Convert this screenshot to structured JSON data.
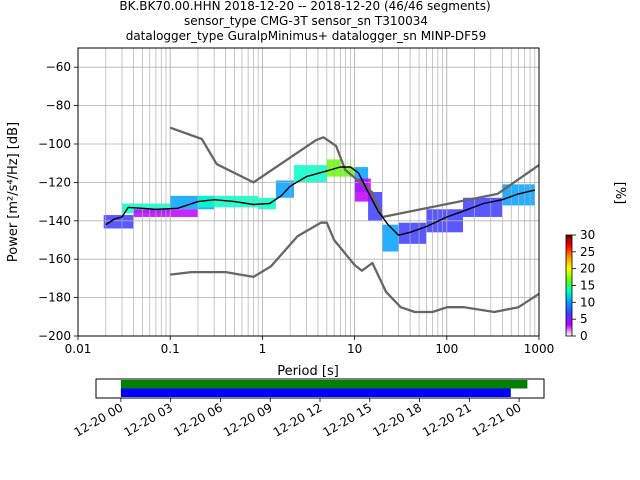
{
  "title": {
    "line1": "BK.BK70.00.HHN   2018-12-20 -- 2018-12-20  (46/46 segments)",
    "line2": "sensor_type CMG-3T sensor_sn T310034",
    "line3": "datalogger_type GuralpMinimus+ datalogger_sn MINP-DF59"
  },
  "chart_data": [
    {
      "type": "heatmap",
      "xlabel": "Period [s]",
      "ylabel": "Power [m²/s⁴/Hz] [dB]",
      "xscale": "log",
      "xlim": [
        0.01,
        1000
      ],
      "ylim": [
        -200,
        -50
      ],
      "grid": true,
      "xticks": [
        {
          "v": 0.01,
          "label": "0.01"
        },
        {
          "v": 0.1,
          "label": "0.1"
        },
        {
          "v": 1,
          "label": "1"
        },
        {
          "v": 10,
          "label": "10"
        },
        {
          "v": 100,
          "label": "100"
        },
        {
          "v": 1000,
          "label": "1000"
        }
      ],
      "yticks": [
        {
          "v": -60,
          "label": "−60"
        },
        {
          "v": -80,
          "label": "−80"
        },
        {
          "v": -100,
          "label": "−100"
        },
        {
          "v": -120,
          "label": "−120"
        },
        {
          "v": -140,
          "label": "−140"
        },
        {
          "v": -160,
          "label": "−160"
        },
        {
          "v": -180,
          "label": "−180"
        },
        {
          "v": -200,
          "label": "−200"
        }
      ],
      "colorbar": {
        "label": "[%]",
        "range": [
          0,
          30
        ],
        "ticks": [
          {
            "v": 0,
            "label": "0"
          },
          {
            "v": 5,
            "label": "5"
          },
          {
            "v": 10,
            "label": "10"
          },
          {
            "v": 15,
            "label": "15"
          },
          {
            "v": 20,
            "label": "20"
          },
          {
            "v": 25,
            "label": "25"
          },
          {
            "v": 30,
            "label": "30"
          }
        ],
        "colors": [
          "#ffffff",
          "#bf00ff",
          "#3c3cff",
          "#00a0ff",
          "#00ffc8",
          "#64ff00",
          "#ffff00",
          "#ff9600",
          "#ff0000",
          "#700000"
        ]
      },
      "noise_models": {
        "color": "#666666",
        "high": [
          [
            0.1,
            -91.5
          ],
          [
            0.22,
            -97.4
          ],
          [
            0.32,
            -110.5
          ],
          [
            0.8,
            -120.0
          ],
          [
            3.8,
            -98.0
          ],
          [
            4.6,
            -96.5
          ],
          [
            6.3,
            -101.0
          ],
          [
            7.9,
            -113.5
          ],
          [
            15.4,
            -125.0
          ],
          [
            20,
            -138.0
          ],
          [
            354.8,
            -126.0
          ],
          [
            1000,
            -111.0
          ]
        ],
        "low": [
          [
            0.1,
            -168.0
          ],
          [
            0.17,
            -166.7
          ],
          [
            0.4,
            -166.7
          ],
          [
            0.8,
            -169.2
          ],
          [
            1.24,
            -163.7
          ],
          [
            2.4,
            -148.0
          ],
          [
            4.3,
            -141.0
          ],
          [
            5.0,
            -141.0
          ],
          [
            6.0,
            -150.0
          ],
          [
            10.0,
            -163.0
          ],
          [
            12.0,
            -166.0
          ],
          [
            15.6,
            -162.0
          ],
          [
            21.9,
            -177.0
          ],
          [
            31.6,
            -185.0
          ],
          [
            45,
            -187.5
          ],
          [
            70,
            -187.5
          ],
          [
            101,
            -185.0
          ],
          [
            154,
            -185.0
          ],
          [
            328,
            -187.5
          ],
          [
            600,
            -185.0
          ],
          [
            1000,
            -178.0
          ]
        ]
      },
      "mode_curve": {
        "color": "#000000",
        "points": [
          [
            0.02,
            -142
          ],
          [
            0.025,
            -139
          ],
          [
            0.03,
            -138
          ],
          [
            0.035,
            -133
          ],
          [
            0.05,
            -133.5
          ],
          [
            0.07,
            -134
          ],
          [
            0.12,
            -133.5
          ],
          [
            0.2,
            -130
          ],
          [
            0.3,
            -129
          ],
          [
            0.5,
            -130
          ],
          [
            0.8,
            -131.5
          ],
          [
            1.2,
            -131
          ],
          [
            1.6,
            -127
          ],
          [
            2,
            -122
          ],
          [
            3,
            -117
          ],
          [
            5,
            -114
          ],
          [
            7,
            -112
          ],
          [
            9,
            -112
          ],
          [
            11,
            -115
          ],
          [
            14,
            -125
          ],
          [
            18,
            -135
          ],
          [
            23,
            -142
          ],
          [
            30,
            -147.5
          ],
          [
            40,
            -146
          ],
          [
            60,
            -143
          ],
          [
            100,
            -138
          ],
          [
            150,
            -135
          ],
          [
            250,
            -131
          ],
          [
            400,
            -129
          ],
          [
            600,
            -126
          ],
          [
            900,
            -124
          ]
        ]
      },
      "density": {
        "cells": [
          {
            "x": [
              0.019,
              0.04
            ],
            "y": [
              -144,
              -137
            ],
            "pct": 8
          },
          {
            "x": [
              0.03,
              0.1
            ],
            "y": [
              -136,
              -131
            ],
            "pct": 12
          },
          {
            "x": [
              0.04,
              0.2
            ],
            "y": [
              -138,
              -134
            ],
            "pct": 4
          },
          {
            "x": [
              0.1,
              0.3
            ],
            "y": [
              -134,
              -127
            ],
            "pct": 10
          },
          {
            "x": [
              0.2,
              0.9
            ],
            "y": [
              -133,
              -127
            ],
            "pct": 14
          },
          {
            "x": [
              0.2,
              1.0
            ],
            "y": [
              -126,
              -121
            ],
            "pct": 1
          },
          {
            "x": [
              0.9,
              1.4
            ],
            "y": [
              -134,
              -128
            ],
            "pct": 12
          },
          {
            "x": [
              1.4,
              2.2
            ],
            "y": [
              -128,
              -119
            ],
            "pct": 10
          },
          {
            "x": [
              2.2,
              5.0
            ],
            "y": [
              -120,
              -111
            ],
            "pct": 12
          },
          {
            "x": [
              5.0,
              10.0
            ],
            "y": [
              -117,
              -108
            ],
            "pct": 16
          },
          {
            "x": [
              10.0,
              14.0
            ],
            "y": [
              -125,
              -112
            ],
            "pct": 9
          },
          {
            "x": [
              14.0,
              20.0
            ],
            "y": [
              -140,
              -125
            ],
            "pct": 7
          },
          {
            "x": [
              20.0,
              30.0
            ],
            "y": [
              -156,
              -142
            ],
            "pct": 9
          },
          {
            "x": [
              30.0,
              60.0
            ],
            "y": [
              -152,
              -141
            ],
            "pct": 8
          },
          {
            "x": [
              60.0,
              150.0
            ],
            "y": [
              -146,
              -134
            ],
            "pct": 7
          },
          {
            "x": [
              150.0,
              400.0
            ],
            "y": [
              -138,
              -128
            ],
            "pct": 8
          },
          {
            "x": [
              400.0,
              900.0
            ],
            "y": [
              -132,
              -121
            ],
            "pct": 9
          },
          {
            "x": [
              7.0,
              20.0
            ],
            "y": [
              -112,
              -96
            ],
            "pct": 1
          },
          {
            "x": [
              20.0,
              60.0
            ],
            "y": [
              -113,
              -96
            ],
            "pct": 1
          },
          {
            "x": [
              60.0,
              200.0
            ],
            "y": [
              -125,
              -110
            ],
            "pct": 1
          },
          {
            "x": [
              10.0,
              15.0
            ],
            "y": [
              -130,
              -118
            ],
            "pct": 2
          }
        ]
      }
    },
    {
      "type": "timeline",
      "xlim_hours": [
        -1.5,
        25.5
      ],
      "xticks": [
        {
          "h": 0,
          "label": "12-20 00"
        },
        {
          "h": 3,
          "label": "12-20 03"
        },
        {
          "h": 6,
          "label": "12-20 06"
        },
        {
          "h": 9,
          "label": "12-20 09"
        },
        {
          "h": 12,
          "label": "12-20 12"
        },
        {
          "h": 15,
          "label": "12-20 15"
        },
        {
          "h": 18,
          "label": "12-20 18"
        },
        {
          "h": 21,
          "label": "12-20 21"
        },
        {
          "h": 24,
          "label": "12-21 00"
        }
      ],
      "bars": [
        {
          "start_h": 0,
          "end_h": 24.5,
          "color": "#008000"
        },
        {
          "start_h": 0,
          "end_h": 23.5,
          "color": "#0000ff"
        }
      ]
    }
  ]
}
